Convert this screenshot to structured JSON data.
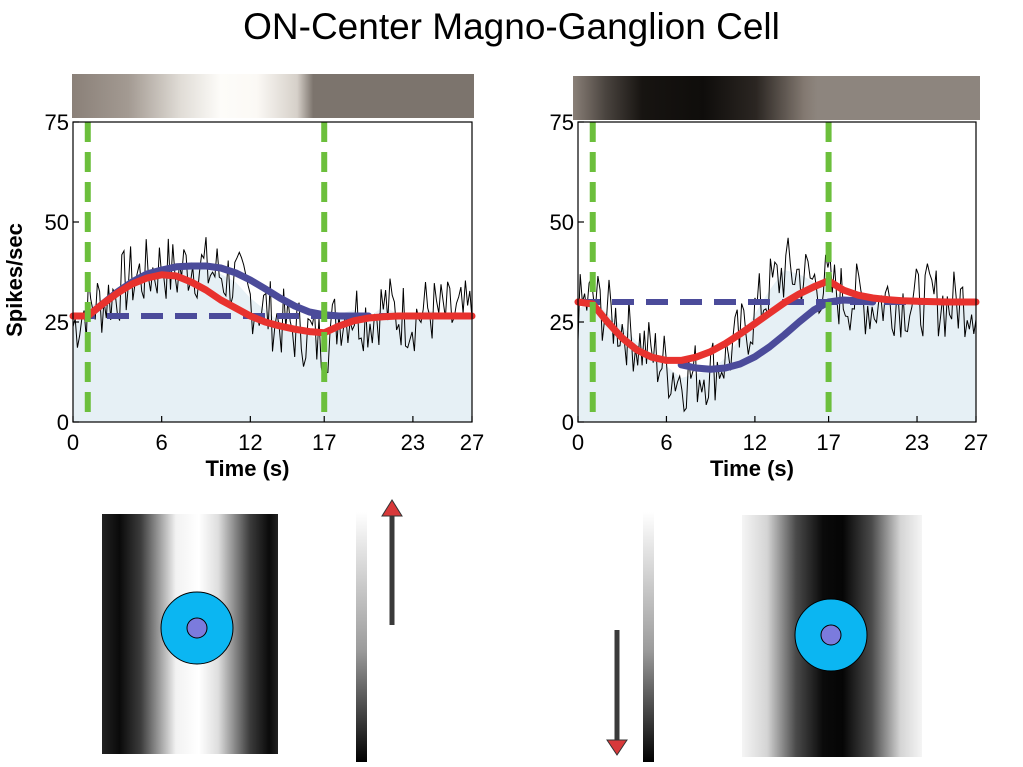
{
  "title": "ON-Center Magno-Ganglion Cell",
  "colors": {
    "fill": "#e6f0f5",
    "noise": "#000000",
    "model_blue": "#4b4b9a",
    "model_red": "#e8322e",
    "stim_lines": "#6cbf3c",
    "rf_surround": "#0bb6f2",
    "rf_center": "#7b7bdd",
    "arrow_head": "#d8393a"
  },
  "chart_data": [
    {
      "type": "line",
      "name": "bright-bar",
      "title": "",
      "xlabel": "Time (s)",
      "ylabel": "Spikes/sec",
      "xlim": [
        0,
        27
      ],
      "ylim": [
        0,
        75
      ],
      "xticks": [
        0,
        6,
        12,
        17,
        23,
        27
      ],
      "yticks": [
        0,
        25,
        50,
        75
      ],
      "stimulus_markers_x": [
        1,
        17
      ],
      "baseline": 26.5,
      "series": [
        {
          "role": "response",
          "x": [
            0,
            1,
            2,
            3,
            4,
            5,
            6,
            7,
            8,
            9,
            10,
            11,
            12,
            13,
            14,
            15,
            16,
            17,
            18,
            19,
            20,
            21,
            22,
            23,
            24,
            25,
            26,
            27
          ],
          "values": [
            24,
            29,
            30,
            33,
            36,
            37,
            39,
            37,
            40,
            38,
            37,
            35,
            31,
            28,
            25,
            23,
            22,
            19,
            27,
            28,
            26,
            29,
            27,
            26,
            28,
            27,
            26,
            27
          ]
        },
        {
          "role": "model-blue",
          "x": [
            1,
            2,
            3,
            4,
            5,
            6,
            7,
            8,
            9,
            10,
            11,
            12,
            13,
            14,
            15,
            16,
            17,
            18,
            19,
            20
          ],
          "values": [
            26.5,
            29.5,
            32.5,
            35,
            37,
            38,
            38.8,
            39,
            39,
            38.5,
            37.3,
            35.5,
            33.3,
            31,
            29,
            27.5,
            26.8,
            26.5,
            26.5,
            26.5
          ]
        },
        {
          "role": "model-red",
          "x": [
            0,
            1,
            2,
            3,
            4,
            5,
            6,
            7,
            8,
            9,
            10,
            11,
            12,
            13,
            14,
            15,
            16,
            17,
            18,
            19,
            20,
            21,
            22,
            23,
            24,
            25,
            26,
            27
          ],
          "values": [
            26.5,
            26.5,
            29.5,
            32.2,
            34.5,
            36,
            36.8,
            36.5,
            35,
            33,
            30.5,
            28.5,
            26.5,
            25,
            24,
            23.2,
            22.6,
            22.3,
            24,
            25.3,
            26,
            26.3,
            26.5,
            26.5,
            26.5,
            26.5,
            26.5,
            26.5
          ]
        }
      ]
    },
    {
      "type": "line",
      "name": "dark-bar",
      "title": "",
      "xlabel": "Time (s)",
      "ylabel": "",
      "xlim": [
        0,
        27
      ],
      "ylim": [
        0,
        75
      ],
      "xticks": [
        0,
        6,
        12,
        17,
        23,
        27
      ],
      "yticks": [
        0,
        25,
        50,
        75
      ],
      "stimulus_markers_x": [
        1,
        17
      ],
      "baseline": 30,
      "series": [
        {
          "role": "response",
          "x": [
            0,
            1,
            2,
            3,
            4,
            5,
            6,
            7,
            8,
            9,
            10,
            11,
            12,
            13,
            14,
            15,
            16,
            17,
            18,
            19,
            20,
            21,
            22,
            23,
            24,
            25,
            26,
            27
          ],
          "values": [
            28,
            31,
            27,
            24,
            20,
            17,
            14,
            11,
            12,
            13,
            16,
            21,
            27,
            33,
            38,
            37,
            35,
            34,
            31,
            31,
            29,
            31,
            30,
            30,
            31,
            29,
            30,
            30
          ]
        },
        {
          "role": "model-blue",
          "x": [
            7,
            8,
            9,
            10,
            11,
            12,
            13,
            14,
            15,
            16,
            17,
            18,
            19,
            20
          ],
          "values": [
            14.3,
            13.5,
            13.2,
            13.5,
            14.5,
            16.3,
            18.8,
            21.8,
            25,
            28,
            30,
            30.5,
            30.3,
            30
          ]
        },
        {
          "role": "model-red",
          "x": [
            0,
            1,
            2,
            3,
            4,
            5,
            6,
            7,
            8,
            9,
            10,
            11,
            12,
            13,
            14,
            15,
            16,
            17,
            18,
            19,
            20,
            21,
            22,
            23,
            24,
            25,
            26,
            27
          ],
          "values": [
            30,
            29.5,
            25,
            21,
            18,
            16.2,
            15.4,
            15.4,
            16.2,
            17.6,
            19.6,
            22,
            24.6,
            27.2,
            29.8,
            32,
            33.8,
            35.3,
            33,
            31.7,
            31,
            30.6,
            30.3,
            30.2,
            30.1,
            30,
            30,
            30
          ]
        }
      ]
    }
  ]
}
